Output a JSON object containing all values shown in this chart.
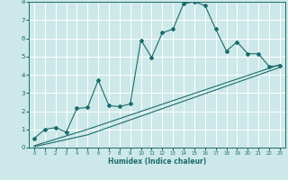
{
  "title": "",
  "xlabel": "Humidex (Indice chaleur)",
  "xlim": [
    -0.5,
    23.5
  ],
  "ylim": [
    0,
    8
  ],
  "xticks": [
    0,
    1,
    2,
    3,
    4,
    5,
    6,
    7,
    8,
    9,
    10,
    11,
    12,
    13,
    14,
    15,
    16,
    17,
    18,
    19,
    20,
    21,
    22,
    23
  ],
  "yticks": [
    0,
    1,
    2,
    3,
    4,
    5,
    6,
    7,
    8
  ],
  "bg_color": "#cde8e8",
  "grid_color": "#ffffff",
  "line_color": "#1b6b6b",
  "line1_x": [
    0,
    1,
    2,
    3,
    4,
    5,
    6,
    7,
    8,
    9,
    10,
    11,
    12,
    13,
    14,
    15,
    16,
    17,
    18,
    19,
    20,
    21,
    22,
    23
  ],
  "line1_y": [
    0.5,
    1.0,
    1.1,
    0.85,
    2.15,
    2.2,
    3.7,
    2.3,
    2.25,
    2.4,
    5.9,
    4.95,
    6.3,
    6.5,
    7.9,
    8.0,
    7.8,
    6.5,
    5.3,
    5.8,
    5.15,
    5.15,
    4.45,
    4.5
  ],
  "line2_x": [
    0,
    5,
    23
  ],
  "line2_y": [
    0.05,
    0.7,
    4.4
  ],
  "line3_x": [
    0,
    5,
    23
  ],
  "line3_y": [
    0.1,
    1.0,
    4.55
  ],
  "marker_style": "D",
  "marker_size": 2.0,
  "line_width": 0.8,
  "xlabel_fontsize": 5.5,
  "tick_fontsize_x": 4.0,
  "tick_fontsize_y": 5.0
}
